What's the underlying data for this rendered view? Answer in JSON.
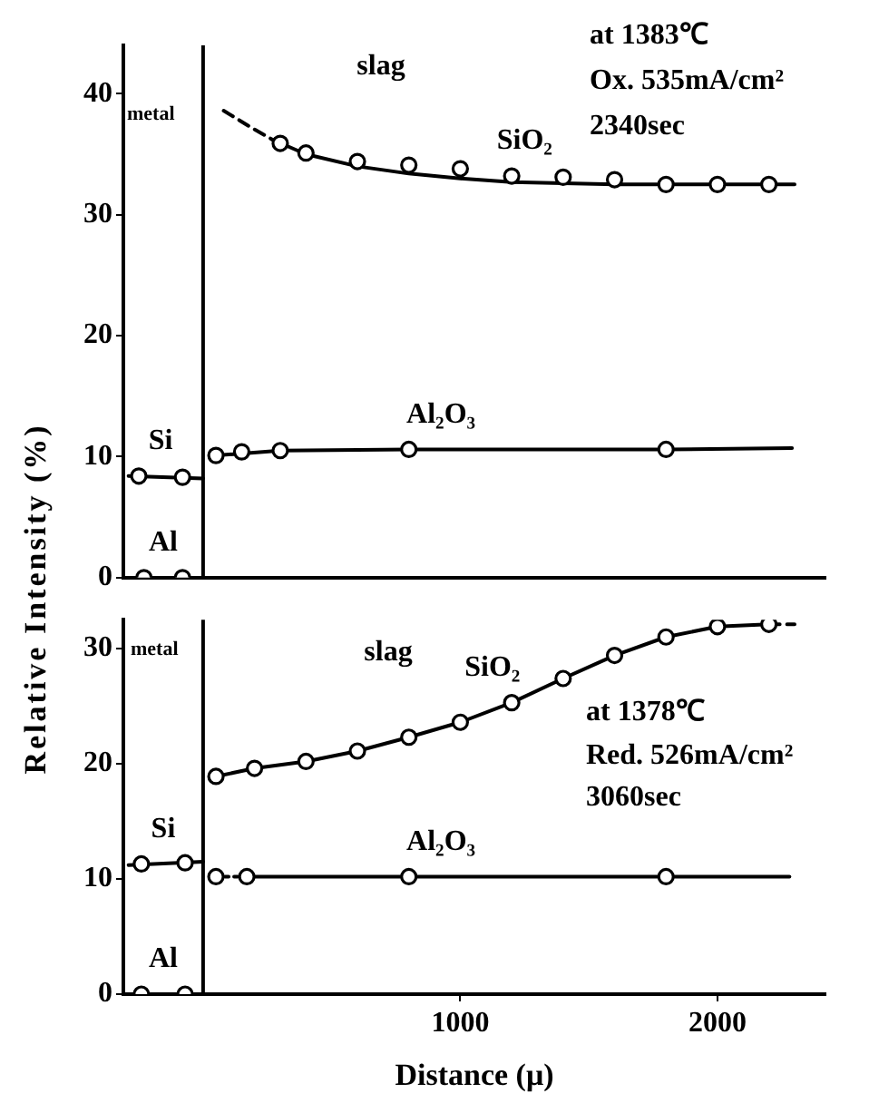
{
  "chart_data": [
    {
      "type": "scatter",
      "ylabel": "Relative Intensity (%)",
      "annotations": [
        "metal",
        "slag",
        "at 1383℃",
        "Ox. 535mA/cm²",
        "2340sec"
      ],
      "xlim": [
        -310,
        2420
      ],
      "ylim": [
        0,
        44
      ],
      "yticks": [
        0,
        10,
        20,
        30,
        40
      ],
      "tick_labels": "y",
      "grid": false,
      "legend": false,
      "ref_lines": [
        {
          "axis": "x",
          "value": 0,
          "color": "#000000"
        }
      ],
      "series": [
        {
          "name": "SiO₂",
          "type": "scatter",
          "color": "#000000",
          "marker": "circle",
          "x": [
            300,
            400,
            600,
            800,
            1000,
            1200,
            1400,
            1600,
            1800,
            2000,
            2200
          ],
          "values": [
            35.9,
            35.1,
            34.4,
            34.1,
            33.8,
            33.2,
            33.1,
            32.9,
            32.5,
            32.5,
            32.5
          ]
        },
        {
          "type": "line",
          "color": "#000000",
          "marker": "none",
          "line_style": "dashed",
          "x": [
            80,
            180,
            270
          ],
          "values": [
            38.6,
            37.3,
            36.2
          ]
        },
        {
          "type": "line",
          "color": "#000000",
          "marker": "none",
          "line_style": "solid",
          "x": [
            270,
            400,
            600,
            800,
            1000,
            1200,
            1600,
            2000,
            2300
          ],
          "values": [
            36.2,
            35.0,
            34.0,
            33.4,
            33.0,
            32.7,
            32.5,
            32.5,
            32.5
          ]
        },
        {
          "name": "Al₂O₃",
          "type": "scatter",
          "color": "#000000",
          "marker": "circle",
          "x": [
            50,
            150,
            300,
            800,
            1800
          ],
          "values": [
            10.1,
            10.4,
            10.5,
            10.6,
            10.6
          ]
        },
        {
          "type": "line",
          "color": "#000000",
          "marker": "none",
          "line_style": "solid",
          "x": [
            50,
            300,
            800,
            1800,
            2290
          ],
          "values": [
            10.1,
            10.5,
            10.6,
            10.6,
            10.7
          ]
        },
        {
          "name": "Si",
          "type": "scatter",
          "color": "#000000",
          "marker": "circle",
          "x": [
            -250,
            -80
          ],
          "values": [
            8.4,
            8.3
          ]
        },
        {
          "type": "line",
          "color": "#000000",
          "marker": "none",
          "line_style": "solid",
          "x": [
            -290,
            0
          ],
          "values": [
            8.4,
            8.2
          ]
        },
        {
          "name": "Al",
          "type": "scatter",
          "color": "#000000",
          "marker": "circle",
          "x": [
            -230,
            -80
          ],
          "values": [
            0,
            0
          ]
        }
      ]
    },
    {
      "type": "scatter",
      "xlabel": "Distance (μ)",
      "annotations": [
        "metal",
        "slag",
        "at 1378℃",
        "Red. 526mA/cm²",
        "3060sec"
      ],
      "xlim": [
        -310,
        2420
      ],
      "xticks": [
        1000,
        2000
      ],
      "ylim": [
        0,
        32.5
      ],
      "yticks": [
        0,
        10,
        20,
        30
      ],
      "grid": false,
      "legend": false,
      "ref_lines": [
        {
          "axis": "x",
          "value": 0,
          "color": "#000000"
        }
      ],
      "series": [
        {
          "name": "SiO₂",
          "type": "scatter",
          "color": "#000000",
          "marker": "circle",
          "x": [
            50,
            200,
            400,
            600,
            800,
            1000,
            1200,
            1400,
            1600,
            1800,
            2000,
            2200
          ],
          "values": [
            18.9,
            19.6,
            20.2,
            21.1,
            22.3,
            23.6,
            25.3,
            27.4,
            29.4,
            31.0,
            31.9,
            32.1
          ]
        },
        {
          "type": "line",
          "color": "#000000",
          "marker": "none",
          "line_style": "solid",
          "x": [
            50,
            200,
            400,
            600,
            800,
            1000,
            1200,
            1400,
            1600,
            1800,
            2000,
            2200
          ],
          "values": [
            18.9,
            19.6,
            20.2,
            21.1,
            22.3,
            23.6,
            25.3,
            27.4,
            29.4,
            31.0,
            31.9,
            32.1
          ]
        },
        {
          "type": "line",
          "color": "#000000",
          "marker": "none",
          "line_style": "dashed",
          "x": [
            2200,
            2300
          ],
          "values": [
            32.1,
            32.1
          ]
        },
        {
          "name": "Al₂O₃",
          "type": "scatter",
          "color": "#000000",
          "marker": "circle",
          "x": [
            50,
            170,
            800,
            1800
          ],
          "values": [
            10.2,
            10.2,
            10.2,
            10.2
          ]
        },
        {
          "type": "line",
          "color": "#000000",
          "marker": "none",
          "line_style": "dotted",
          "x": [
            50,
            170
          ],
          "values": [
            10.2,
            10.2
          ]
        },
        {
          "type": "line",
          "color": "#000000",
          "marker": "none",
          "line_style": "solid",
          "x": [
            170,
            800,
            1800,
            2280
          ],
          "values": [
            10.2,
            10.2,
            10.2,
            10.2
          ]
        },
        {
          "name": "Si",
          "type": "scatter",
          "color": "#000000",
          "marker": "circle",
          "x": [
            -240,
            -70
          ],
          "values": [
            11.3,
            11.4
          ]
        },
        {
          "type": "line",
          "color": "#000000",
          "marker": "none",
          "line_style": "solid",
          "x": [
            -290,
            0
          ],
          "values": [
            11.2,
            11.5
          ]
        },
        {
          "name": "Al",
          "type": "scatter",
          "color": "#000000",
          "marker": "circle",
          "x": [
            -240,
            -70
          ],
          "values": [
            0,
            0
          ]
        }
      ]
    }
  ]
}
